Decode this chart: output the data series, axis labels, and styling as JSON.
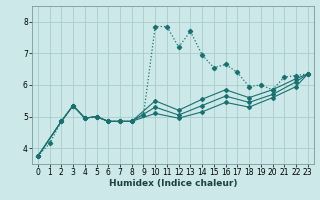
{
  "title": "",
  "xlabel": "Humidex (Indice chaleur)",
  "ylabel": "",
  "bg_color": "#cce8e8",
  "grid_color": "#aacccc",
  "line_color": "#1a7070",
  "xlim": [
    -0.5,
    23.5
  ],
  "ylim": [
    3.5,
    8.5
  ],
  "xticks": [
    0,
    1,
    2,
    3,
    4,
    5,
    6,
    7,
    8,
    9,
    10,
    11,
    12,
    13,
    14,
    15,
    16,
    17,
    18,
    19,
    20,
    21,
    22,
    23
  ],
  "yticks": [
    4,
    5,
    6,
    7,
    8
  ],
  "series": [
    {
      "x": [
        0,
        1,
        2,
        3,
        4,
        5,
        6,
        7,
        8,
        9,
        10,
        11,
        12,
        13,
        14,
        15,
        16,
        17,
        18,
        19,
        20,
        21,
        22,
        23
      ],
      "y": [
        3.75,
        4.15,
        4.85,
        5.35,
        4.95,
        5.0,
        4.85,
        4.85,
        4.85,
        5.05,
        7.85,
        7.85,
        7.2,
        7.7,
        6.95,
        6.55,
        6.65,
        6.4,
        5.95,
        6.0,
        5.85,
        6.25,
        6.3,
        6.35
      ],
      "style": "dotted"
    },
    {
      "x": [
        0,
        2,
        3,
        4,
        5,
        6,
        7,
        8,
        10,
        12,
        14,
        16,
        18,
        20,
        22,
        23
      ],
      "y": [
        3.75,
        4.85,
        5.35,
        4.95,
        5.0,
        4.85,
        4.85,
        4.85,
        5.5,
        5.2,
        5.55,
        5.85,
        5.6,
        5.85,
        6.2,
        6.35
      ],
      "style": "solid_mid1"
    },
    {
      "x": [
        0,
        2,
        3,
        4,
        5,
        6,
        7,
        8,
        10,
        12,
        14,
        16,
        18,
        20,
        22,
        23
      ],
      "y": [
        3.75,
        4.85,
        5.35,
        4.95,
        5.0,
        4.85,
        4.85,
        4.85,
        5.3,
        5.05,
        5.35,
        5.65,
        5.45,
        5.7,
        6.1,
        6.35
      ],
      "style": "solid_mid2"
    },
    {
      "x": [
        0,
        2,
        3,
        4,
        5,
        6,
        7,
        8,
        10,
        12,
        14,
        16,
        18,
        20,
        22,
        23
      ],
      "y": [
        3.75,
        4.85,
        5.35,
        4.95,
        5.0,
        4.85,
        4.85,
        4.85,
        5.1,
        4.95,
        5.15,
        5.45,
        5.3,
        5.6,
        5.95,
        6.35
      ],
      "style": "solid_low"
    }
  ]
}
